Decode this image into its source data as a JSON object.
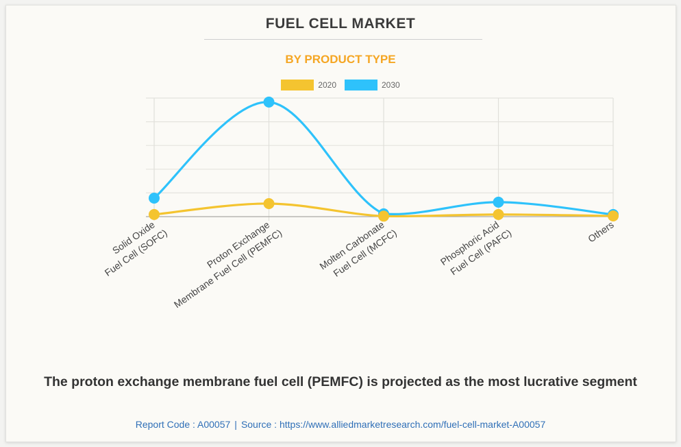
{
  "header": {
    "title": "FUEL CELL MARKET",
    "subtitle": "BY PRODUCT TYPE"
  },
  "colors": {
    "series_2020": "#f4c430",
    "series_2030": "#2ec2fb",
    "subtitle": "#f5a623",
    "footer": "#2f6fb7"
  },
  "chart_data": {
    "type": "line",
    "title": "FUEL CELL MARKET",
    "subtitle": "BY PRODUCT TYPE",
    "xlabel": "",
    "ylabel": "",
    "categories": [
      "Solid Oxide Fuel Cell (SOFC)",
      "Proton Exchange Membrane Fuel Cell (PEMFC)",
      "Molten Carbonate Fuel Cell (MCFC)",
      "Phosphoric Acid Fuel Cell (PAFC)",
      "Others"
    ],
    "category_label_lines": [
      [
        "Solid Oxide",
        "Fuel Cell (SOFC)"
      ],
      [
        "Proton Exchange",
        "Membrane Fuel Cell (PEMFC)"
      ],
      [
        "Molten Carbonate",
        "Fuel Cell (MCFC)"
      ],
      [
        "Phosphoric Acid",
        "Fuel Cell (PAFC)"
      ],
      [
        "Others"
      ]
    ],
    "series": [
      {
        "name": "2020",
        "values": [
          0.09,
          0.55,
          0.02,
          0.09,
          0.03
        ]
      },
      {
        "name": "2030",
        "values": [
          0.78,
          4.83,
          0.12,
          0.61,
          0.09
        ]
      }
    ],
    "ylim": [
      0,
      5
    ],
    "y_ticks_unlabeled": 5,
    "grid": true,
    "smooth": true,
    "legend_position": "top-center"
  },
  "caption": "The proton exchange membrane fuel cell (PEMFC) is projected as the most lucrative segment",
  "footer": {
    "report_code": "Report Code : A00057",
    "separator": "|",
    "source": "Source : https://www.alliedmarketresearch.com/fuel-cell-market-A00057"
  }
}
